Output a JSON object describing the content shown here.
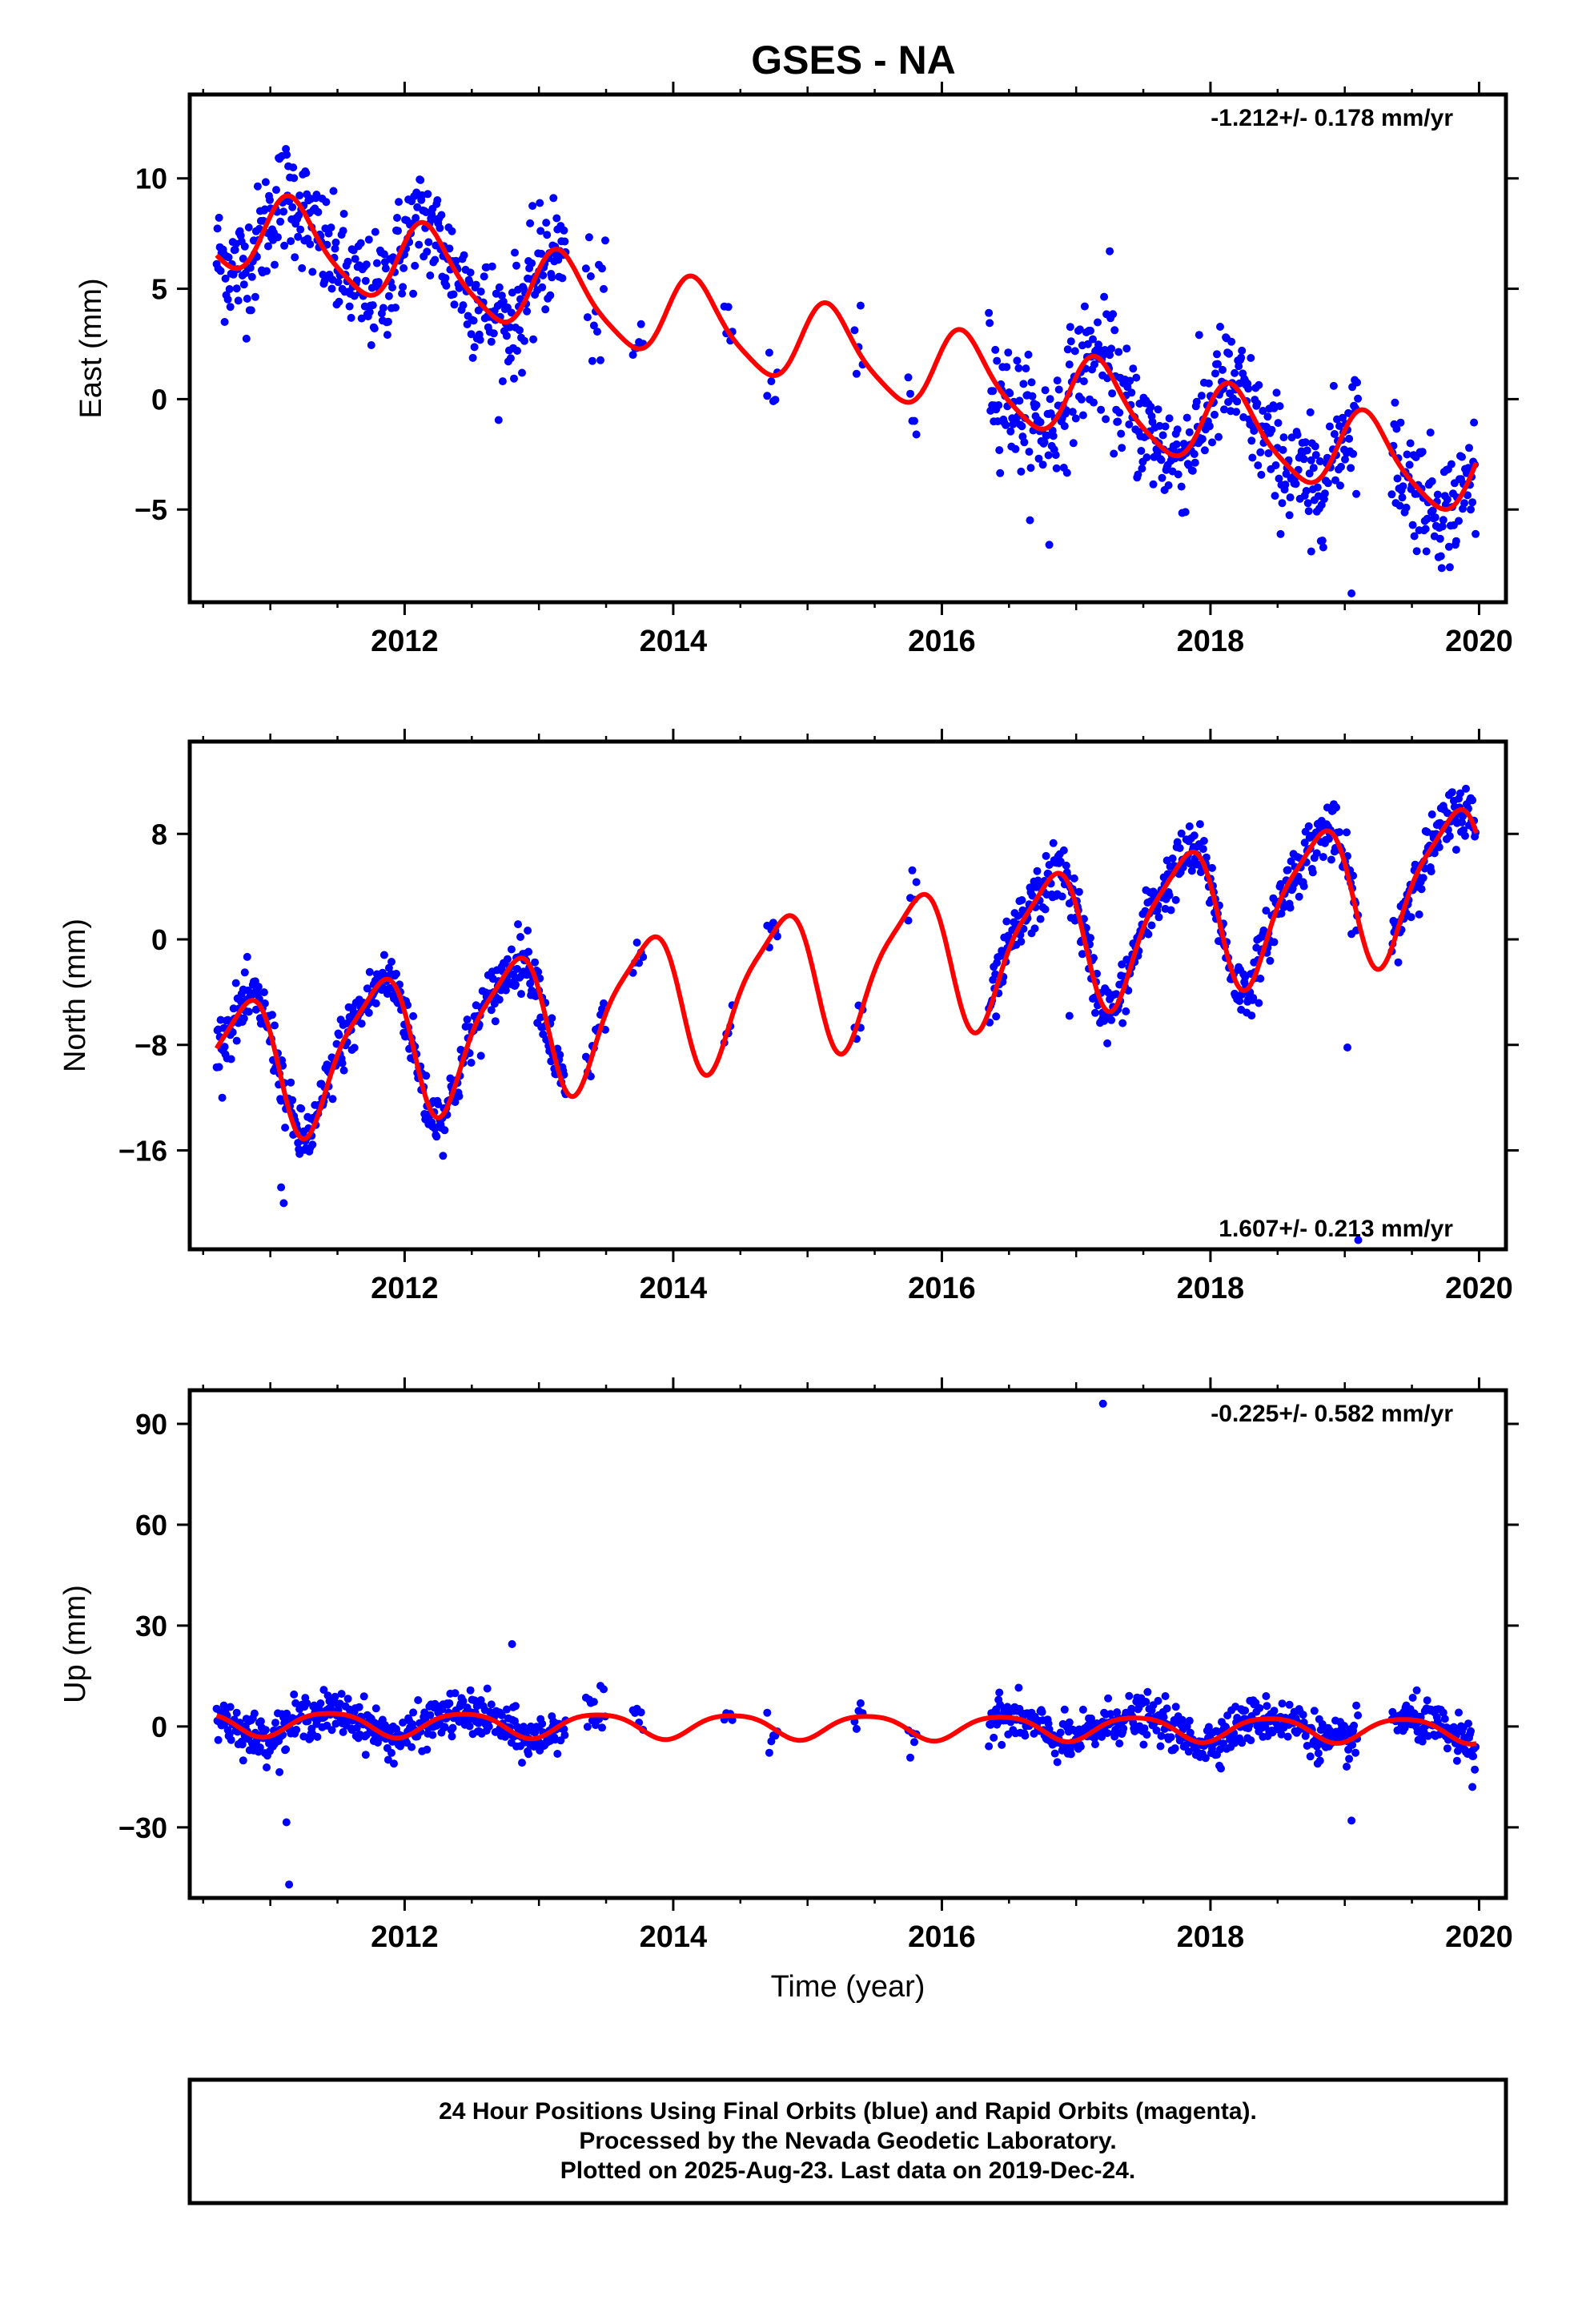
{
  "title": "GSES - NA",
  "xlabel": "Time (year)",
  "colors": {
    "points": "#0000ff",
    "fit": "#ff0000",
    "frame": "#000000"
  },
  "footer": {
    "line1": "24 Hour Positions Using Final Orbits (blue) and Rapid Orbits (magenta).",
    "line2": "Processed by the Nevada Geodetic Laboratory.",
    "line3": "Plotted on 2025-Aug-23. Last data on 2019-Dec-24."
  },
  "chart_data": [
    {
      "type": "scatter",
      "panel": "east",
      "ylabel": "East (mm)",
      "rate_text": "-1.212+/- 0.178 mm/yr",
      "rate_position": "top-right",
      "xlim": [
        2010.4,
        2020.2
      ],
      "ylim": [
        -9.2,
        13.8
      ],
      "x_ticks": [
        2012,
        2014,
        2016,
        2018,
        2020
      ],
      "y_ticks": [
        10,
        5,
        0,
        -5
      ],
      "y_tick_labels": [
        "10",
        "5",
        "0",
        "−5"
      ],
      "fit": {
        "slope": -1.212,
        "ref_year": 2015.3,
        "offset": 2.1,
        "annual_amp": 1.8,
        "annual_phase": 0.5,
        "semiannual_amp": 0.35,
        "start": 2010.6,
        "end": 2019.98
      },
      "scatter": {
        "sigma": 1.3
      },
      "data_segments": [
        {
          "start": 2010.6,
          "end": 2013.2,
          "spacing": 0.006
        },
        {
          "start": 2013.35,
          "end": 2013.5,
          "spacing": 0.012
        },
        {
          "start": 2013.7,
          "end": 2013.78,
          "spacing": 0.015
        },
        {
          "start": 2014.38,
          "end": 2014.45,
          "spacing": 0.015
        },
        {
          "start": 2014.7,
          "end": 2014.78,
          "spacing": 0.015
        },
        {
          "start": 2015.35,
          "end": 2015.42,
          "spacing": 0.015
        },
        {
          "start": 2015.75,
          "end": 2015.82,
          "spacing": 0.015
        },
        {
          "start": 2016.35,
          "end": 2019.1,
          "spacing": 0.006
        },
        {
          "start": 2019.35,
          "end": 2019.98,
          "spacing": 0.006
        }
      ],
      "outliers": [
        {
          "x": 2017.25,
          "y": 6.7
        },
        {
          "x": 2016.8,
          "y": -6.6
        },
        {
          "x": 2019.05,
          "y": -8.8
        },
        {
          "x": 2018.75,
          "y": -6.9
        }
      ]
    },
    {
      "type": "scatter",
      "panel": "north",
      "ylabel": "North (mm)",
      "rate_text": "1.607+/- 0.213 mm/yr",
      "rate_position": "bottom-right",
      "xlim": [
        2010.4,
        2020.2
      ],
      "ylim": [
        -23.5,
        15.0
      ],
      "x_ticks": [
        2012,
        2014,
        2016,
        2018,
        2020
      ],
      "y_ticks": [
        8,
        0,
        -8,
        -16
      ],
      "y_tick_labels": [
        "8",
        "0",
        "−8",
        "−16"
      ],
      "fit": {
        "slope": 1.607,
        "ref_year": 2015.3,
        "offset": -2.5,
        "annual_amp": 5.2,
        "annual_phase": 2.9,
        "semiannual_amp": 1.2,
        "start": 2010.6,
        "end": 2019.98
      },
      "scatter": {
        "sigma": 1.1
      },
      "data_segments": [
        {
          "start": 2010.6,
          "end": 2013.2,
          "spacing": 0.006
        },
        {
          "start": 2013.35,
          "end": 2013.5,
          "spacing": 0.012
        },
        {
          "start": 2013.7,
          "end": 2013.78,
          "spacing": 0.015
        },
        {
          "start": 2014.38,
          "end": 2014.45,
          "spacing": 0.015
        },
        {
          "start": 2014.7,
          "end": 2014.78,
          "spacing": 0.015
        },
        {
          "start": 2015.35,
          "end": 2015.42,
          "spacing": 0.015
        },
        {
          "start": 2015.75,
          "end": 2015.82,
          "spacing": 0.015
        },
        {
          "start": 2016.35,
          "end": 2019.1,
          "spacing": 0.006
        },
        {
          "start": 2019.35,
          "end": 2019.98,
          "spacing": 0.006
        }
      ],
      "outliers": [
        {
          "x": 2011.08,
          "y": -18.8
        },
        {
          "x": 2011.1,
          "y": -20.0
        },
        {
          "x": 2016.95,
          "y": -5.8
        },
        {
          "x": 2019.02,
          "y": -8.2
        },
        {
          "x": 2019.1,
          "y": -22.8
        }
      ]
    },
    {
      "type": "scatter",
      "panel": "up",
      "ylabel": "Up (mm)",
      "rate_text": "-0.225+/- 0.582 mm/yr",
      "rate_position": "top-right",
      "xlim": [
        2010.4,
        2020.2
      ],
      "ylim": [
        -51.0,
        100.0
      ],
      "x_ticks": [
        2012,
        2014,
        2016,
        2018,
        2020
      ],
      "y_ticks": [
        90,
        60,
        30,
        0,
        -30
      ],
      "y_tick_labels": [
        "90",
        "60",
        "30",
        "0",
        "−30"
      ],
      "fit": {
        "slope": -0.225,
        "ref_year": 2015.3,
        "offset": 0.0,
        "annual_amp": 3.6,
        "annual_phase": -1.2,
        "semiannual_amp": 0.6,
        "start": 2010.6,
        "end": 2019.98
      },
      "scatter": {
        "sigma": 3.2
      },
      "data_segments": [
        {
          "start": 2010.6,
          "end": 2013.2,
          "spacing": 0.006
        },
        {
          "start": 2013.35,
          "end": 2013.5,
          "spacing": 0.012
        },
        {
          "start": 2013.7,
          "end": 2013.78,
          "spacing": 0.015
        },
        {
          "start": 2014.38,
          "end": 2014.45,
          "spacing": 0.015
        },
        {
          "start": 2014.7,
          "end": 2014.78,
          "spacing": 0.015
        },
        {
          "start": 2015.35,
          "end": 2015.42,
          "spacing": 0.015
        },
        {
          "start": 2015.75,
          "end": 2015.82,
          "spacing": 0.015
        },
        {
          "start": 2016.35,
          "end": 2019.1,
          "spacing": 0.006
        },
        {
          "start": 2019.35,
          "end": 2019.98,
          "spacing": 0.006
        }
      ],
      "outliers": [
        {
          "x": 2017.2,
          "y": 96.0
        },
        {
          "x": 2011.12,
          "y": -28.5
        },
        {
          "x": 2011.14,
          "y": -47.0
        },
        {
          "x": 2012.8,
          "y": 24.5
        },
        {
          "x": 2019.05,
          "y": -28.0
        },
        {
          "x": 2019.95,
          "y": -18.0
        }
      ]
    }
  ]
}
